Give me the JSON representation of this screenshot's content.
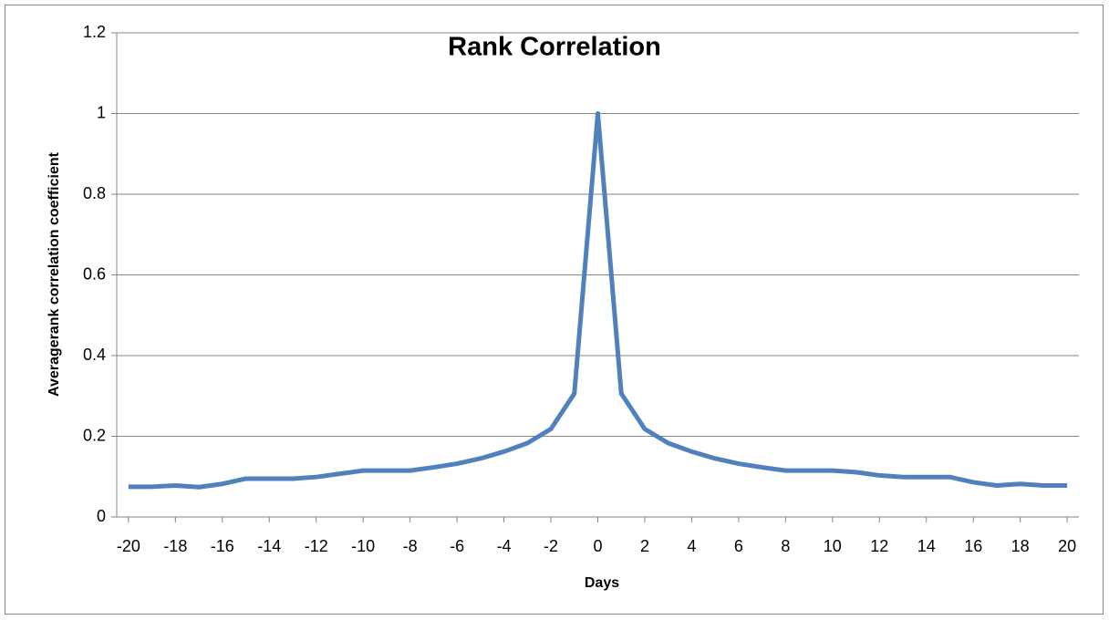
{
  "chart_data": {
    "type": "line",
    "title": "Rank Correlation",
    "x_label": "Days",
    "y_label": "Averagerank correlation coefficient",
    "x": [
      -20,
      -19,
      -18,
      -17,
      -16,
      -15,
      -14,
      -13,
      -12,
      -11,
      -10,
      -9,
      -8,
      -7,
      -6,
      -5,
      -4,
      -3,
      -2,
      -1,
      0,
      1,
      2,
      3,
      4,
      5,
      6,
      7,
      8,
      9,
      10,
      11,
      12,
      13,
      14,
      15,
      16,
      17,
      18,
      19,
      20
    ],
    "series": [
      {
        "name": "Rank Correlation",
        "color": "#4f81bd",
        "values": [
          0.075,
          0.075,
          0.078,
          0.074,
          0.082,
          0.095,
          0.095,
          0.095,
          0.099,
          0.107,
          0.115,
          0.115,
          0.115,
          0.123,
          0.132,
          0.145,
          0.162,
          0.183,
          0.218,
          0.306,
          1,
          0.306,
          0.218,
          0.183,
          0.162,
          0.145,
          0.132,
          0.123,
          0.115,
          0.115,
          0.115,
          0.111,
          0.103,
          0.099,
          0.099,
          0.099,
          0.086,
          0.078,
          0.082,
          0.078,
          0.078
        ]
      }
    ],
    "xlim": [
      -20.5,
      20.5
    ],
    "xticks": [
      -20,
      -18,
      -16,
      -14,
      -12,
      -10,
      -8,
      -6,
      -4,
      -2,
      0,
      2,
      4,
      6,
      8,
      10,
      12,
      14,
      16,
      18,
      20
    ],
    "ylim": [
      0,
      1.2
    ],
    "yticks": [
      0,
      0.2,
      0.4,
      0.6,
      0.8,
      1,
      1.2
    ],
    "grid": true
  }
}
